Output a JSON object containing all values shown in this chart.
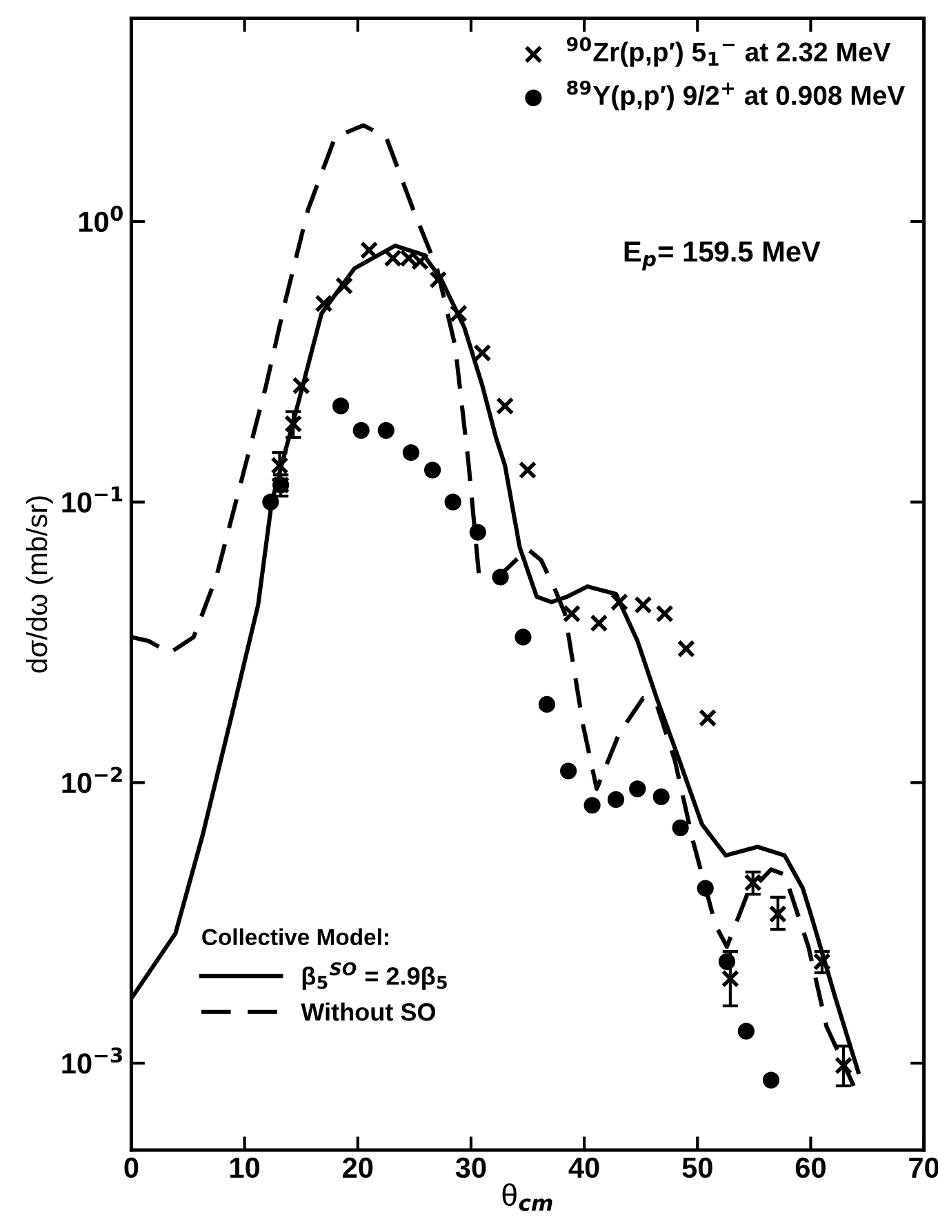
{
  "chart_data": {
    "type": "scatter",
    "xlabel": "θ$_{cm}$",
    "ylabel": "dσ/dω (mb/sr)",
    "log": "y",
    "xlim": [
      0,
      70
    ],
    "xticks": [
      0,
      10,
      20,
      30,
      40,
      50,
      60,
      70
    ],
    "ylim": [
      0.00049,
      5.3
    ],
    "yticks": [
      {
        "value": 0.001,
        "label": "10$^{−3}$"
      },
      {
        "value": 0.01,
        "label": "10$^{−2}$"
      },
      {
        "value": 0.1,
        "label": "10$^{−1}$"
      },
      {
        "value": 1,
        "label": "10$^{0}$"
      }
    ],
    "legend": "top right",
    "legend_title": "Collective Model:",
    "annotations": [
      "E$_{p}$= 159.5 MeV"
    ],
    "series": [
      {
        "name": "$^{90}$Zr(p,p′) 5$_{1}$$^{−}$ at 2.32 MeV",
        "marker": "cross",
        "color": "#000000",
        "x": [
          13.1,
          13.2,
          14.3,
          15.0,
          17.0,
          18.8,
          21.0,
          23.1,
          24.5,
          25.5,
          27.1,
          28.9,
          31.0,
          33.0,
          35.0,
          38.9,
          41.3,
          43.1,
          45.2,
          47.1,
          49.0,
          50.9,
          52.9,
          54.9,
          57.1,
          61.0,
          62.9
        ],
        "values": [
          0.135,
          0.115,
          0.19,
          0.26,
          0.51,
          0.59,
          0.79,
          0.74,
          0.74,
          0.72,
          0.62,
          0.47,
          0.34,
          0.22,
          0.13,
          0.04,
          0.037,
          0.044,
          0.043,
          0.04,
          0.03,
          0.017,
          0.002,
          0.0044,
          0.0034,
          0.0023,
          0.00098
        ],
        "errors": [
          [
            0.12,
            0.15
          ],
          [
            0.105,
            0.125
          ],
          [
            0.17,
            0.21
          ],
          null,
          null,
          null,
          null,
          null,
          null,
          null,
          null,
          null,
          null,
          null,
          null,
          null,
          null,
          null,
          null,
          null,
          null,
          null,
          [
            0.0016,
            0.0025
          ],
          [
            0.004,
            0.0048
          ],
          [
            0.003,
            0.0039
          ],
          [
            0.0021,
            0.0025
          ],
          [
            0.00083,
            0.00115
          ]
        ]
      },
      {
        "name": "$^{89}$Y(p,p′) 9/2$^{+}$ at 0.908 MeV",
        "marker": "circle",
        "color": "#000000",
        "x": [
          12.3,
          13.2,
          18.5,
          20.3,
          22.5,
          24.7,
          26.6,
          28.4,
          30.6,
          32.6,
          34.6,
          36.7,
          38.6,
          40.7,
          42.8,
          44.7,
          46.8,
          48.5,
          50.7,
          52.6,
          54.3,
          56.5
        ],
        "values": [
          0.1,
          0.115,
          0.22,
          0.18,
          0.18,
          0.15,
          0.13,
          0.1,
          0.078,
          0.054,
          0.033,
          0.019,
          0.011,
          0.0083,
          0.0087,
          0.0095,
          0.0089,
          0.0069,
          0.0042,
          0.0023,
          0.0013,
          0.00087
        ]
      },
      {
        "name": "β$_{5}$$^{SO}$ = 2.9β$_{5}$",
        "type": "line",
        "line_style": "solid",
        "marker": "none",
        "color": "#000000",
        "x": [
          0,
          3.9,
          6.3,
          9.1,
          11.2,
          12.4,
          14.8,
          16.8,
          19.7,
          23.3,
          25.8,
          27.3,
          29.4,
          31.0,
          32.2,
          33.0,
          34.3,
          35.8,
          37.1,
          38.5,
          40.3,
          42.8,
          44.7,
          46.4,
          48.4,
          50.4,
          52.5,
          55.3,
          57.7,
          59.3,
          60.1,
          62.2,
          64.2
        ],
        "values": [
          0.0017,
          0.0029,
          0.0065,
          0.019,
          0.043,
          0.1,
          0.23,
          0.47,
          0.68,
          0.82,
          0.76,
          0.63,
          0.42,
          0.26,
          0.17,
          0.135,
          0.069,
          0.046,
          0.044,
          0.046,
          0.05,
          0.047,
          0.032,
          0.02,
          0.012,
          0.0071,
          0.0055,
          0.0059,
          0.0055,
          0.0042,
          0.0033,
          0.0017,
          0.00093
        ]
      },
      {
        "name": "Without SO",
        "type": "line",
        "line_style": "dashed",
        "marker": "none",
        "color": "#000000",
        "x": [
          0,
          1.5,
          3.4,
          5.5,
          7.5,
          9.5,
          11.9,
          13.6,
          15.6,
          18.0,
          20.5,
          22.5,
          24.9,
          27.0,
          28.6,
          29.8,
          30.7,
          32.6,
          35.0,
          36.2,
          37.4,
          38.3,
          39.9,
          41.1,
          43.1,
          45.2,
          46.4,
          48.0,
          49.6,
          51.6,
          52.6,
          54.4,
          56.5,
          57.7,
          59.8,
          61.4,
          63.8
        ],
        "values": [
          0.033,
          0.032,
          0.029,
          0.033,
          0.054,
          0.11,
          0.26,
          0.52,
          1.1,
          2.0,
          2.2,
          2.0,
          1.1,
          0.68,
          0.36,
          0.135,
          0.055,
          0.055,
          0.068,
          0.062,
          0.049,
          0.04,
          0.016,
          0.0095,
          0.015,
          0.02,
          0.019,
          0.012,
          0.0062,
          0.0031,
          0.0026,
          0.004,
          0.0049,
          0.0047,
          0.0026,
          0.00135,
          0.00083
        ]
      }
    ]
  }
}
